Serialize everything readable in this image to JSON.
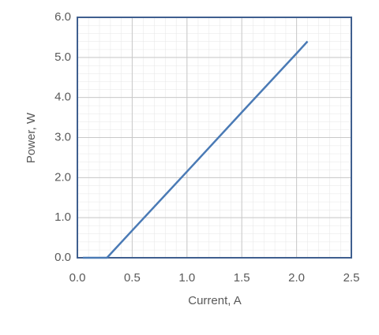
{
  "chart_data": {
    "type": "line",
    "x_label": "Current, A",
    "y_label": "Power, W",
    "x": [
      0.05,
      0.27,
      0.5,
      1.0,
      1.5,
      2.0,
      2.1
    ],
    "series": [
      {
        "name": "Power",
        "color": "#4a7ab5",
        "values": [
          0,
          0,
          0.68,
          2.15,
          3.63,
          5.1,
          5.4
        ]
      }
    ],
    "xlim": [
      0,
      2.5
    ],
    "xticks": [
      {
        "value": 0,
        "label": "0.0"
      },
      0.5,
      {
        "value": 1,
        "label": "1.0"
      },
      1.5,
      {
        "value": 2,
        "label": "2.0"
      },
      2.5
    ],
    "ylim": [
      0,
      6
    ],
    "yticks": [
      {
        "value": 0,
        "label": "0.0"
      },
      {
        "value": 1,
        "label": "1.0"
      },
      {
        "value": 2,
        "label": "2.0"
      },
      {
        "value": 3,
        "label": "3.0"
      },
      {
        "value": 4,
        "label": "4.0"
      },
      {
        "value": 5,
        "label": "5.0"
      },
      {
        "value": 6,
        "label": "6.0"
      }
    ],
    "grid": true
  }
}
